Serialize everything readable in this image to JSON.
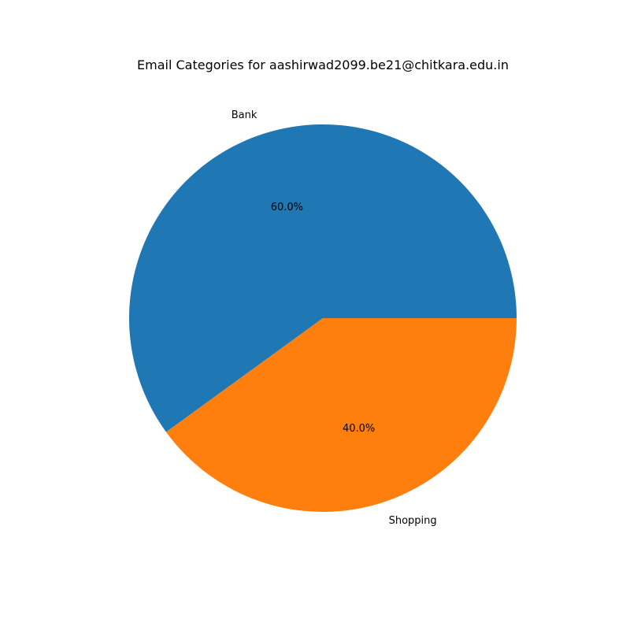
{
  "chart_data": {
    "type": "pie",
    "title": "Email Categories for aashirwad2099.be21@chitkara.edu.in",
    "slices": [
      {
        "label": "Bank",
        "value": 60.0,
        "percent_label": "60.0%",
        "color": "#1f77b4"
      },
      {
        "label": "Shopping",
        "value": 40.0,
        "percent_label": "40.0%",
        "color": "#ff7f0e"
      }
    ],
    "start_angle_deg": 0,
    "direction": "counterclockwise",
    "legend": "none"
  }
}
